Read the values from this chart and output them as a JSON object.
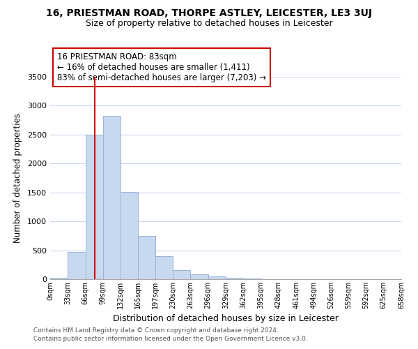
{
  "title": "16, PRIESTMAN ROAD, THORPE ASTLEY, LEICESTER, LE3 3UJ",
  "subtitle": "Size of property relative to detached houses in Leicester",
  "xlabel": "Distribution of detached houses by size in Leicester",
  "ylabel": "Number of detached properties",
  "bin_edges": [
    0,
    33,
    66,
    99,
    132,
    165,
    197,
    230,
    263,
    296,
    329,
    362,
    395,
    428,
    461,
    494,
    526,
    559,
    592,
    625,
    658
  ],
  "bar_heights": [
    25,
    470,
    2500,
    2820,
    1510,
    750,
    395,
    155,
    90,
    45,
    20,
    10,
    5,
    0,
    0,
    0,
    0,
    0,
    0,
    0
  ],
  "bar_color": "#c8d8ee",
  "bar_edge_color": "#9ab4d8",
  "vline_x": 83,
  "vline_color": "#cc0000",
  "annotation_title": "16 PRIESTMAN ROAD: 83sqm",
  "annotation_line1": "← 16% of detached houses are smaller (1,411)",
  "annotation_line2": "83% of semi-detached houses are larger (7,203) →",
  "annotation_box_color": "#ffffff",
  "annotation_box_edge": "#cc0000",
  "tick_labels": [
    "0sqm",
    "33sqm",
    "66sqm",
    "99sqm",
    "132sqm",
    "165sqm",
    "197sqm",
    "230sqm",
    "263sqm",
    "296sqm",
    "329sqm",
    "362sqm",
    "395sqm",
    "428sqm",
    "461sqm",
    "494sqm",
    "526sqm",
    "559sqm",
    "592sqm",
    "625sqm",
    "658sqm"
  ],
  "ylim": [
    0,
    3500
  ],
  "yticks": [
    0,
    500,
    1000,
    1500,
    2000,
    2500,
    3000,
    3500
  ],
  "footer1": "Contains HM Land Registry data © Crown copyright and database right 2024.",
  "footer2": "Contains public sector information licensed under the Open Government Licence v3.0.",
  "background_color": "#ffffff",
  "grid_color": "#c8d8ee"
}
